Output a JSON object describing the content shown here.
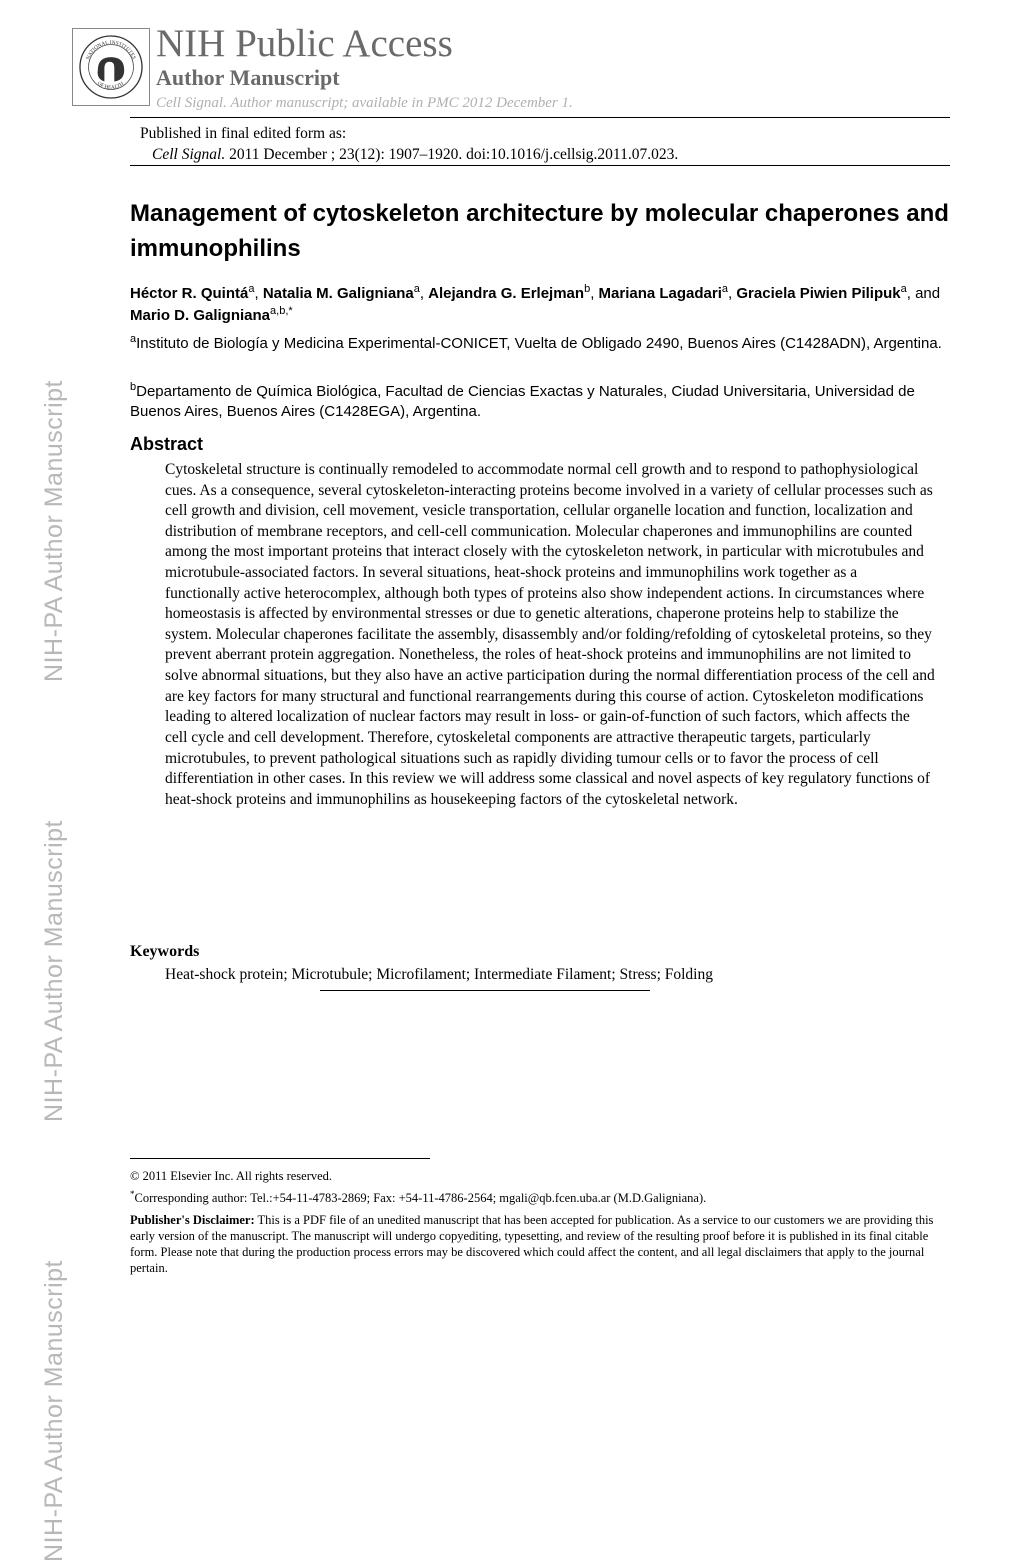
{
  "watermark_text": "NIH-PA Author Manuscript",
  "header": {
    "nih_title": "NIH Public Access",
    "author_manuscript": "Author Manuscript",
    "availability_journal": "Cell Signal",
    "availability_rest": ". Author manuscript; available in PMC 2012 December 1."
  },
  "published": {
    "line1": "Published in final edited form as:",
    "journal": "Cell Signal.",
    "citation_rest": " 2011 December ; 23(12): 1907–1920. doi:10.1016/j.cellsig.2011.07.023."
  },
  "title": "Management of cytoskeleton architecture by molecular chaperones and immunophilins",
  "authors_html": "<b>Héctor R. Quintá</b><sup>a</sup>, <b>Natalia M. Galigniana</b><sup>a</sup>, <b>Alejandra G. Erlejman</b><sup>b</sup>, <b>Mariana Lagadari</b><sup>a</sup>, <b>Graciela Piwien Pilipuk</b><sup>a</sup>, and <b>Mario D. Galigniana</b><sup>a,b,*</sup>",
  "affiliations": {
    "a": "Instituto de Biología y Medicina Experimental-CONICET, Vuelta de Obligado 2490, Buenos Aires (C1428ADN), Argentina.",
    "b": "Departamento de Química Biológica, Facultad de Ciencias Exactas y Naturales, Ciudad Universitaria, Universidad de Buenos Aires, Buenos Aires (C1428EGA), Argentina."
  },
  "abstract_heading": "Abstract",
  "abstract": "Cytoskeletal structure is continually remodeled to accommodate normal cell growth and to respond to pathophysiological cues. As a consequence, several cytoskeleton-interacting proteins become involved in a variety of cellular processes such as cell growth and division, cell movement, vesicle transportation, cellular organelle location and function, localization and distribution of membrane receptors, and cell-cell communication. Molecular chaperones and immunophilins are counted among the most important proteins that interact closely with the cytoskeleton network, in particular with microtubules and microtubule-associated factors. In several situations, heat-shock proteins and immunophilins work together as a functionally active heterocomplex, although both types of proteins also show independent actions. In circumstances where homeostasis is affected by environmental stresses or due to genetic alterations, chaperone proteins help to stabilize the system. Molecular chaperones facilitate the assembly, disassembly and/or folding/refolding of cytoskeletal proteins, so they prevent aberrant protein aggregation. Nonetheless, the roles of heat-shock proteins and immunophilins are not limited to solve abnormal situations, but they also have an active participation during the normal differentiation process of the cell and are key factors for many structural and functional rearrangements during this course of action. Cytoskeleton modifications leading to altered localization of nuclear factors may result in loss- or gain-of-function of such factors, which affects the cell cycle and cell development. Therefore, cytoskeletal components are attractive therapeutic targets, particularly microtubules, to prevent pathological situations such as rapidly dividing tumour cells or to favor the process of cell differentiation in other cases. In this review we will address some classical and novel aspects of key regulatory functions of heat-shock proteins and immunophilins as housekeeping factors of the cytoskeletal network.",
  "keywords_heading": "Keywords",
  "keywords": "Heat-shock protein; Microtubule; Microfilament; Intermediate Filament; Stress; Folding",
  "footnotes": {
    "copyright": "© 2011 Elsevier Inc. All rights reserved.",
    "corresponding": "Corresponding author: Tel.:+54-11-4783-2869; Fax: +54-11-4786-2564; mgali@qb.fcen.uba.ar (M.D.Galigniana).",
    "disclaimer_label": "Publisher's Disclaimer:",
    "disclaimer": " This is a PDF file of an unedited manuscript that has been accepted for publication. As a service to our customers we are providing this early version of the manuscript. The manuscript will undergo copyediting, typesetting, and review of the resulting proof before it is published in its final citable form. Please note that during the production process errors may be discovered which could affect the content, and all legal disclaimers that apply to the journal pertain."
  },
  "colors": {
    "watermark": "#b8b8b8",
    "header_gray": "#6a6a6a",
    "light_gray": "#b0b0b0",
    "text": "#000000",
    "background": "#ffffff"
  },
  "fonts": {
    "serif": "Times New Roman",
    "sans": "Arial"
  }
}
